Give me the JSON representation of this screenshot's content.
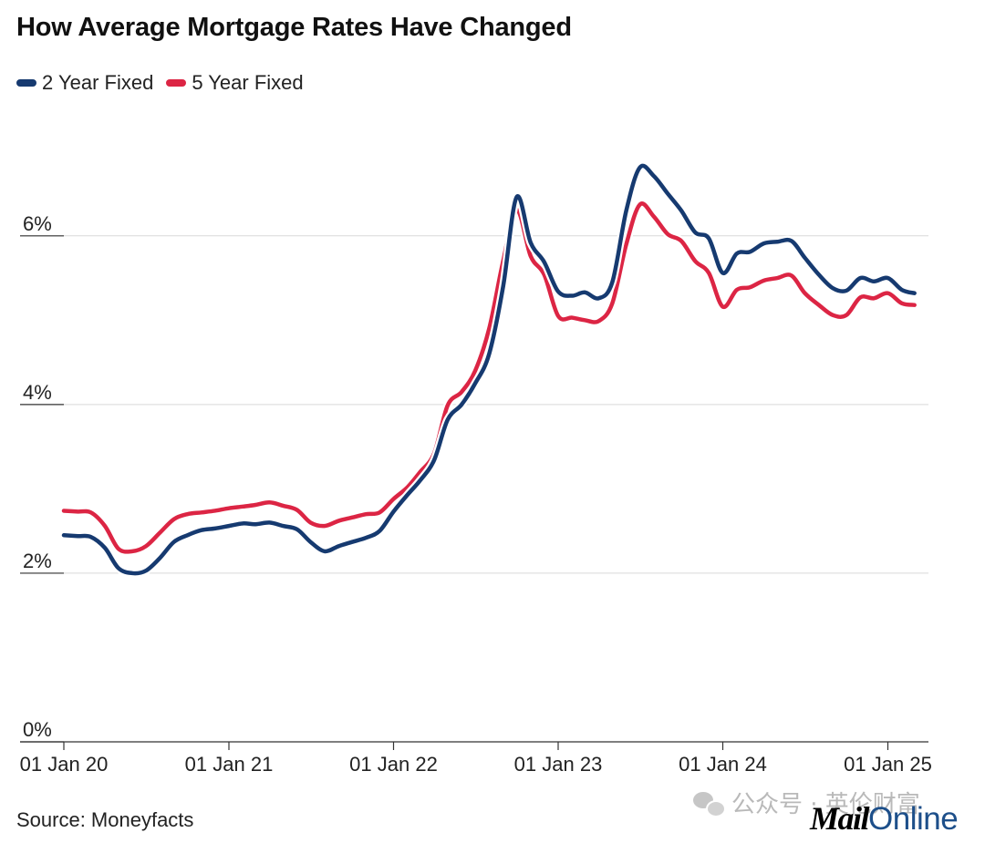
{
  "header": {
    "title": "How Average Mortgage Rates Have Changed"
  },
  "footer": {
    "source": "Source: Moneyfacts",
    "watermark": "公众号 · 英伦财富",
    "logo_mail": "Mail",
    "logo_online": "Online"
  },
  "colors": {
    "two_year": "#163a70",
    "five_year": "#dc2544",
    "grid": "#d9d9d9",
    "axis": "#333333"
  },
  "chart_data": {
    "type": "line",
    "title": "How Average Mortgage Rates Have Changed",
    "xlabel": "",
    "ylabel": "",
    "ylim": [
      0,
      7.5
    ],
    "xlim": [
      "2020-01-01",
      "2025-04-01"
    ],
    "grid": true,
    "legend_position": "top-left",
    "yticks": [
      {
        "value": 0,
        "label": "0%"
      },
      {
        "value": 2,
        "label": "2%"
      },
      {
        "value": 4,
        "label": "4%"
      },
      {
        "value": 6,
        "label": "6%"
      }
    ],
    "xticks": [
      {
        "value": "2020-01-01",
        "label": "01 Jan 20"
      },
      {
        "value": "2021-01-01",
        "label": "01 Jan 21"
      },
      {
        "value": "2022-01-01",
        "label": "01 Jan 22"
      },
      {
        "value": "2023-01-01",
        "label": "01 Jan 23"
      },
      {
        "value": "2024-01-01",
        "label": "01 Jan 24"
      },
      {
        "value": "2025-01-01",
        "label": "01 Jan 25"
      }
    ],
    "series": [
      {
        "name": "2 Year Fixed",
        "color": "#163a70",
        "points": [
          [
            "2020-01-01",
            2.45
          ],
          [
            "2020-02-01",
            2.44
          ],
          [
            "2020-03-01",
            2.43
          ],
          [
            "2020-04-01",
            2.3
          ],
          [
            "2020-05-01",
            2.06
          ],
          [
            "2020-06-01",
            2.0
          ],
          [
            "2020-07-01",
            2.03
          ],
          [
            "2020-08-01",
            2.18
          ],
          [
            "2020-09-01",
            2.37
          ],
          [
            "2020-10-01",
            2.45
          ],
          [
            "2020-11-01",
            2.51
          ],
          [
            "2020-12-01",
            2.53
          ],
          [
            "2021-01-01",
            2.56
          ],
          [
            "2021-02-01",
            2.59
          ],
          [
            "2021-03-01",
            2.58
          ],
          [
            "2021-04-01",
            2.6
          ],
          [
            "2021-05-01",
            2.56
          ],
          [
            "2021-06-01",
            2.52
          ],
          [
            "2021-07-01",
            2.37
          ],
          [
            "2021-08-01",
            2.26
          ],
          [
            "2021-09-01",
            2.32
          ],
          [
            "2021-10-01",
            2.37
          ],
          [
            "2021-11-01",
            2.42
          ],
          [
            "2021-12-01",
            2.5
          ],
          [
            "2022-01-01",
            2.73
          ],
          [
            "2022-02-01",
            2.93
          ],
          [
            "2022-03-01",
            3.1
          ],
          [
            "2022-04-01",
            3.34
          ],
          [
            "2022-05-01",
            3.82
          ],
          [
            "2022-06-01",
            4.0
          ],
          [
            "2022-07-01",
            4.25
          ],
          [
            "2022-08-01",
            4.6
          ],
          [
            "2022-09-01",
            5.4
          ],
          [
            "2022-10-01",
            6.46
          ],
          [
            "2022-11-01",
            5.92
          ],
          [
            "2022-12-01",
            5.69
          ],
          [
            "2023-01-01",
            5.34
          ],
          [
            "2023-02-01",
            5.29
          ],
          [
            "2023-03-01",
            5.33
          ],
          [
            "2023-04-01",
            5.26
          ],
          [
            "2023-05-01",
            5.45
          ],
          [
            "2023-06-01",
            6.3
          ],
          [
            "2023-07-01",
            6.81
          ],
          [
            "2023-08-01",
            6.71
          ],
          [
            "2023-09-01",
            6.5
          ],
          [
            "2023-10-01",
            6.3
          ],
          [
            "2023-11-01",
            6.04
          ],
          [
            "2023-12-01",
            5.97
          ],
          [
            "2024-01-01",
            5.56
          ],
          [
            "2024-02-01",
            5.79
          ],
          [
            "2024-03-01",
            5.81
          ],
          [
            "2024-04-01",
            5.91
          ],
          [
            "2024-05-01",
            5.93
          ],
          [
            "2024-06-01",
            5.94
          ],
          [
            "2024-07-01",
            5.74
          ],
          [
            "2024-08-01",
            5.54
          ],
          [
            "2024-09-01",
            5.38
          ],
          [
            "2024-10-01",
            5.35
          ],
          [
            "2024-11-01",
            5.5
          ],
          [
            "2024-12-01",
            5.46
          ],
          [
            "2025-01-01",
            5.5
          ],
          [
            "2025-02-01",
            5.36
          ],
          [
            "2025-03-01",
            5.32
          ]
        ]
      },
      {
        "name": "5 Year Fixed",
        "color": "#dc2544",
        "points": [
          [
            "2020-01-01",
            2.74
          ],
          [
            "2020-02-01",
            2.73
          ],
          [
            "2020-03-01",
            2.72
          ],
          [
            "2020-04-01",
            2.56
          ],
          [
            "2020-05-01",
            2.29
          ],
          [
            "2020-06-01",
            2.26
          ],
          [
            "2020-07-01",
            2.32
          ],
          [
            "2020-08-01",
            2.48
          ],
          [
            "2020-09-01",
            2.64
          ],
          [
            "2020-10-01",
            2.7
          ],
          [
            "2020-11-01",
            2.72
          ],
          [
            "2020-12-01",
            2.74
          ],
          [
            "2021-01-01",
            2.77
          ],
          [
            "2021-02-01",
            2.79
          ],
          [
            "2021-03-01",
            2.81
          ],
          [
            "2021-04-01",
            2.84
          ],
          [
            "2021-05-01",
            2.8
          ],
          [
            "2021-06-01",
            2.75
          ],
          [
            "2021-07-01",
            2.6
          ],
          [
            "2021-08-01",
            2.56
          ],
          [
            "2021-09-01",
            2.62
          ],
          [
            "2021-10-01",
            2.66
          ],
          [
            "2021-11-01",
            2.7
          ],
          [
            "2021-12-01",
            2.72
          ],
          [
            "2022-01-01",
            2.88
          ],
          [
            "2022-02-01",
            3.02
          ],
          [
            "2022-03-01",
            3.2
          ],
          [
            "2022-04-01",
            3.42
          ],
          [
            "2022-05-01",
            3.99
          ],
          [
            "2022-06-01",
            4.15
          ],
          [
            "2022-07-01",
            4.4
          ],
          [
            "2022-08-01",
            4.9
          ],
          [
            "2022-09-01",
            5.7
          ],
          [
            "2022-10-01",
            6.31
          ],
          [
            "2022-11-01",
            5.76
          ],
          [
            "2022-12-01",
            5.54
          ],
          [
            "2023-01-01",
            5.05
          ],
          [
            "2023-02-01",
            5.03
          ],
          [
            "2023-03-01",
            5.0
          ],
          [
            "2023-04-01",
            4.99
          ],
          [
            "2023-05-01",
            5.2
          ],
          [
            "2023-06-01",
            5.9
          ],
          [
            "2023-07-01",
            6.37
          ],
          [
            "2023-08-01",
            6.23
          ],
          [
            "2023-09-01",
            6.02
          ],
          [
            "2023-10-01",
            5.94
          ],
          [
            "2023-11-01",
            5.7
          ],
          [
            "2023-12-01",
            5.56
          ],
          [
            "2024-01-01",
            5.16
          ],
          [
            "2024-02-01",
            5.36
          ],
          [
            "2024-03-01",
            5.39
          ],
          [
            "2024-04-01",
            5.47
          ],
          [
            "2024-05-01",
            5.5
          ],
          [
            "2024-06-01",
            5.53
          ],
          [
            "2024-07-01",
            5.32
          ],
          [
            "2024-08-01",
            5.18
          ],
          [
            "2024-09-01",
            5.06
          ],
          [
            "2024-10-01",
            5.06
          ],
          [
            "2024-11-01",
            5.27
          ],
          [
            "2024-12-01",
            5.26
          ],
          [
            "2025-01-01",
            5.32
          ],
          [
            "2025-02-01",
            5.2
          ],
          [
            "2025-03-01",
            5.18
          ]
        ]
      }
    ]
  }
}
